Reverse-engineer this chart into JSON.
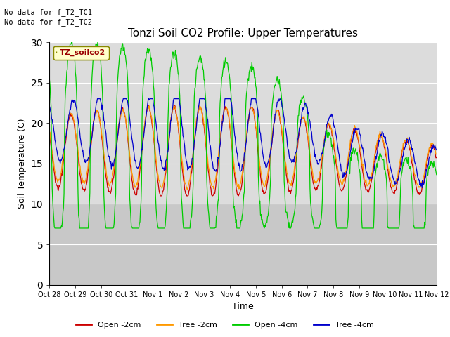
{
  "title": "Tonzi Soil CO2 Profile: Upper Temperatures",
  "xlabel": "Time",
  "ylabel": "Soil Temperature (C)",
  "ylim": [
    0,
    30
  ],
  "yticks": [
    0,
    5,
    10,
    15,
    20,
    25,
    30
  ],
  "note1": "No data for f_T2_TC1",
  "note2": "No data for f_T2_TC2",
  "legend_label": "TZ_soilco2",
  "x_tick_labels": [
    "Oct 28",
    "Oct 29",
    "Oct 30",
    "Oct 31",
    "Nov 1",
    "Nov 2",
    "Nov 3",
    "Nov 4",
    "Nov 5",
    "Nov 6",
    "Nov 7",
    "Nov 8",
    "Nov 9",
    "Nov 10",
    "Nov 11",
    "Nov 12"
  ],
  "series_labels": [
    "Open -2cm",
    "Tree -2cm",
    "Open -4cm",
    "Tree -4cm"
  ],
  "series_colors": [
    "#cc0000",
    "#ff9900",
    "#00cc00",
    "#0000cc"
  ],
  "plot_bg_upper": "#dcdcdc",
  "plot_bg_lower": "#c8c8c8",
  "grid_color": "#ffffff",
  "fig_bg": "#ffffff"
}
